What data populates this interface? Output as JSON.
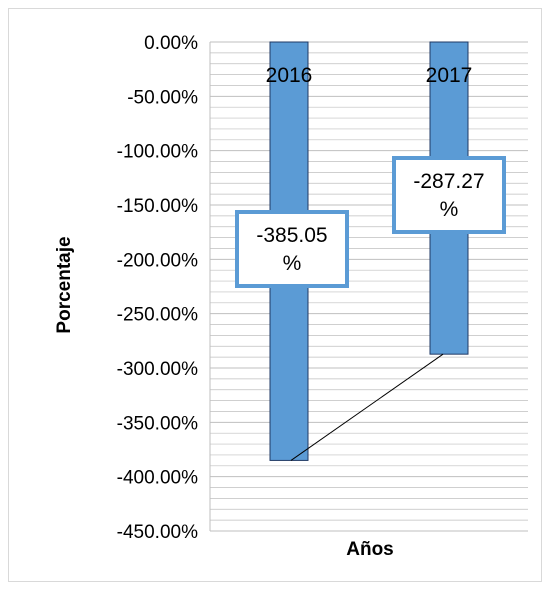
{
  "chart_data": {
    "type": "bar",
    "categories": [
      "2016",
      "2017"
    ],
    "series": [
      {
        "values": [
          -385.05,
          -287.27
        ]
      }
    ],
    "data_labels": [
      "-385.05 %",
      "-287.27 %"
    ],
    "xlabel": "Años",
    "ylabel": "Porcentaje",
    "ylim": [
      -450,
      0
    ],
    "yticks": [
      "0.00%",
      "-50.00%",
      "-100.00%",
      "-150.00%",
      "-200.00%",
      "-250.00%",
      "-300.00%",
      "-350.00%",
      "-400.00%",
      "-450.00%"
    ],
    "grid": true,
    "legend": "none",
    "colors": {
      "bar": "#5b9bd5",
      "bar_border": "#1f3864",
      "label_box_border": "#5b9bd5",
      "grid": "#bfbfbf",
      "frame": "#d9d9d9"
    }
  }
}
